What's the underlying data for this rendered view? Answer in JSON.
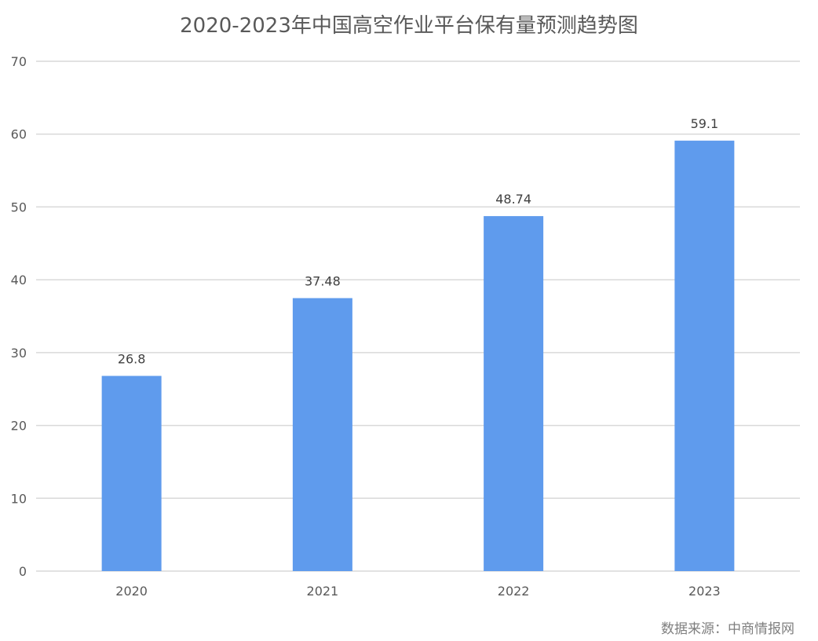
{
  "source_note": "数据来源：中商情报网",
  "colors": {
    "bar": "#5f9bed",
    "grid": "#d9d9d9",
    "axis_text": "#595959",
    "label_text": "#404040"
  },
  "chart_data": {
    "type": "bar",
    "title": "2020-2023年中国高空作业平台保有量预测趋势图",
    "categories": [
      "2020",
      "2021",
      "2022",
      "2023"
    ],
    "values": [
      26.8,
      37.48,
      48.74,
      59.1
    ],
    "data_labels": [
      "26.8",
      "37.48",
      "48.74",
      "59.1"
    ],
    "xlabel": "",
    "ylabel": "",
    "ylim": [
      0,
      70
    ],
    "yticks": [
      0,
      10,
      20,
      30,
      40,
      50,
      60,
      70
    ],
    "grid": true,
    "legend": "none"
  }
}
